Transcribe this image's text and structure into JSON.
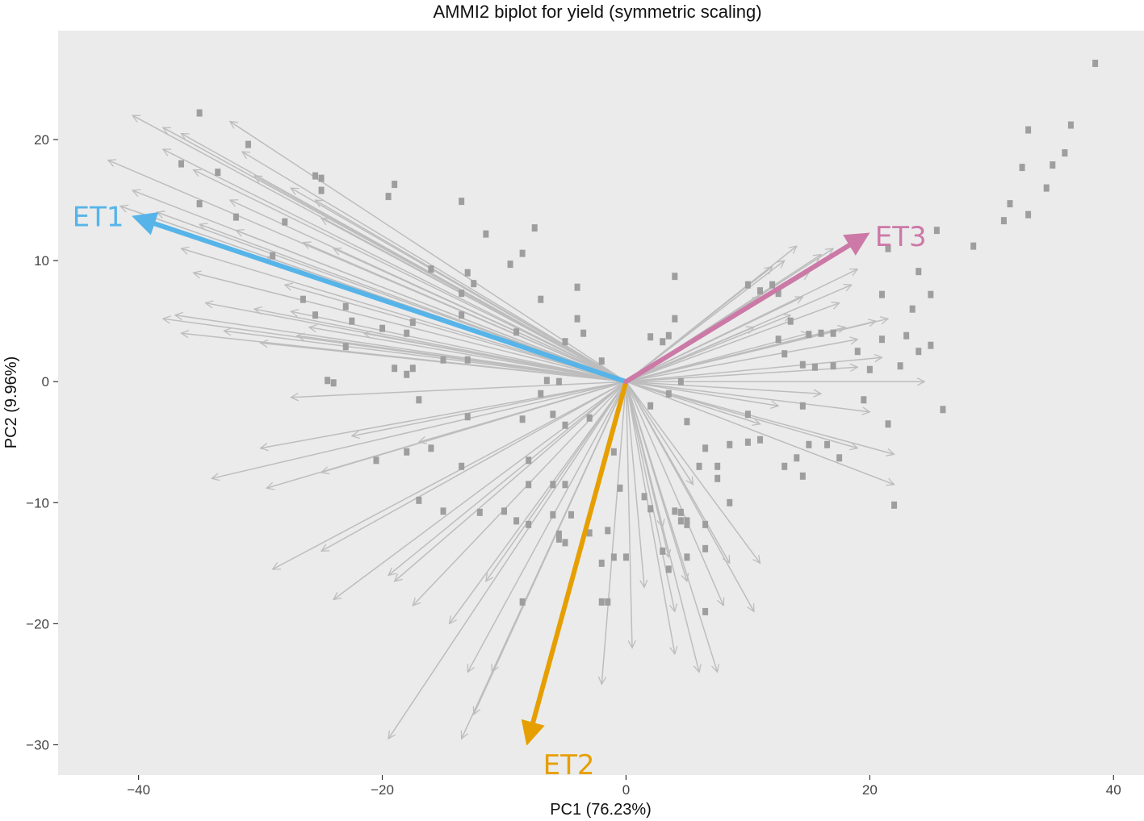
{
  "chart_data": {
    "type": "scatter",
    "title": "AMMI2 biplot for yield (symmetric scaling)",
    "xlabel": "PC1 (76.23%)",
    "ylabel": "PC2 (9.96%)",
    "xlim": [
      -46.6,
      42.5
    ],
    "ylim": [
      -32.5,
      29.0
    ],
    "x_ticks": [
      -40,
      -20,
      0,
      20,
      40
    ],
    "y_ticks": [
      20,
      10,
      0,
      -10,
      -20,
      -30
    ],
    "x_tick_labels": [
      "−40",
      "−20",
      "0",
      "20",
      "40"
    ],
    "y_tick_labels": [
      "20",
      "10",
      "0",
      "−10",
      "−20",
      "−30"
    ],
    "grid": false,
    "colors": {
      "panel_background": "#ebebeb",
      "genotype_vector": "#bdbdbd",
      "genotype_point": "#9e9e9e",
      "ET1": "#56b4e9",
      "ET2": "#e69f00",
      "ET3": "#cc79a7"
    },
    "environments": [
      {
        "label": "ET1",
        "x": -40.0,
        "y": 13.5
      },
      {
        "label": "ET2",
        "x": -8.0,
        "y": -29.5
      },
      {
        "label": "ET3",
        "x": 19.5,
        "y": 12.0
      }
    ],
    "genotype_vectors": [
      [
        -40.5,
        22.0
      ],
      [
        -38.0,
        21.0
      ],
      [
        -36.5,
        20.5
      ],
      [
        -32.5,
        21.5
      ],
      [
        -42.5,
        18.3
      ],
      [
        -38.0,
        19.2
      ],
      [
        -35.5,
        17.5
      ],
      [
        -31.5,
        19.0
      ],
      [
        -30.5,
        17.0
      ],
      [
        -40.5,
        15.8
      ],
      [
        -38.5,
        14.0
      ],
      [
        -35.0,
        13.0
      ],
      [
        -32.0,
        12.5
      ],
      [
        -41.5,
        14.5
      ],
      [
        -36.5,
        11.0
      ],
      [
        -29.5,
        10.3
      ],
      [
        -26.5,
        11.5
      ],
      [
        -24.0,
        11.0
      ],
      [
        -32.5,
        15.0
      ],
      [
        -27.5,
        16.0
      ],
      [
        -25.5,
        15.0
      ],
      [
        -25.0,
        13.5
      ],
      [
        -35.5,
        9.0
      ],
      [
        -28.0,
        8.0
      ],
      [
        -38.0,
        5.2
      ],
      [
        -34.5,
        6.5
      ],
      [
        -30.5,
        6.0
      ],
      [
        -27.5,
        5.8
      ],
      [
        -26.0,
        4.5
      ],
      [
        -37.0,
        5.5
      ],
      [
        -36.5,
        4.0
      ],
      [
        -33.0,
        4.2
      ],
      [
        -30.0,
        3.2
      ],
      [
        -27.0,
        3.8
      ],
      [
        -21.5,
        4.0
      ],
      [
        -27.5,
        -1.3
      ],
      [
        -22.5,
        -4.5
      ],
      [
        -30.0,
        -5.5
      ],
      [
        -34.0,
        -8.0
      ],
      [
        -29.5,
        -8.8
      ],
      [
        -25.0,
        -7.5
      ],
      [
        -17.0,
        -5.0
      ],
      [
        -29.0,
        -15.5
      ],
      [
        -25.0,
        -14.0
      ],
      [
        -24.0,
        -18.0
      ],
      [
        -19.5,
        -16.0
      ],
      [
        -17.5,
        -18.5
      ],
      [
        -14.5,
        -20.0
      ],
      [
        -19.0,
        -16.5
      ],
      [
        -11.5,
        -16.5
      ],
      [
        -13.0,
        -24.0
      ],
      [
        -12.5,
        -27.5
      ],
      [
        -19.5,
        -29.5
      ],
      [
        -13.5,
        -29.5
      ],
      [
        -11.0,
        -24.0
      ],
      [
        -2.0,
        -25.0
      ],
      [
        0.5,
        -22.0
      ],
      [
        1.5,
        -17.0
      ],
      [
        3.5,
        -14.5
      ],
      [
        4.0,
        -19.0
      ],
      [
        4.0,
        -22.5
      ],
      [
        6.0,
        -24.0
      ],
      [
        7.5,
        -24.0
      ],
      [
        8.0,
        -18.5
      ],
      [
        5.0,
        -16.5
      ],
      [
        8.5,
        -15.0
      ],
      [
        11.0,
        -15.0
      ],
      [
        10.5,
        -19.0
      ],
      [
        3.0,
        -12.0
      ],
      [
        5.5,
        -8.5
      ],
      [
        11.0,
        -3.5
      ],
      [
        19.0,
        -5.5
      ],
      [
        22.0,
        -8.5
      ],
      [
        22.0,
        -6.0
      ],
      [
        20.0,
        -2.5
      ],
      [
        12.5,
        -2.0
      ],
      [
        16.0,
        -1.0
      ],
      [
        24.5,
        0.0
      ],
      [
        19.0,
        1.2
      ],
      [
        21.0,
        2.0
      ],
      [
        19.0,
        3.5
      ],
      [
        20.5,
        5.0
      ],
      [
        21.5,
        5.2
      ],
      [
        18.0,
        4.5
      ],
      [
        15.0,
        4.0
      ],
      [
        17.5,
        6.5
      ],
      [
        18.5,
        8.0
      ],
      [
        19.0,
        9.3
      ],
      [
        15.0,
        9.0
      ],
      [
        16.0,
        10.5
      ],
      [
        17.0,
        11.0
      ],
      [
        14.0,
        11.2
      ],
      [
        13.0,
        10.0
      ],
      [
        12.0,
        9.5
      ],
      [
        14.5,
        7.0
      ],
      [
        11.0,
        7.0
      ],
      [
        13.5,
        5.5
      ],
      [
        10.5,
        4.5
      ]
    ],
    "genotype_points": [
      [
        -35.0,
        22.2
      ],
      [
        -31.0,
        19.6
      ],
      [
        -36.5,
        18.0
      ],
      [
        -33.5,
        17.3
      ],
      [
        -25.5,
        17.0
      ],
      [
        -25.0,
        16.8
      ],
      [
        -25.0,
        15.8
      ],
      [
        -19.0,
        16.3
      ],
      [
        -19.5,
        15.3
      ],
      [
        -13.5,
        14.9
      ],
      [
        -35.0,
        14.7
      ],
      [
        -32.0,
        13.6
      ],
      [
        -28.0,
        13.2
      ],
      [
        -11.5,
        12.2
      ],
      [
        -7.5,
        12.7
      ],
      [
        -8.5,
        10.6
      ],
      [
        -9.5,
        9.7
      ],
      [
        -16.0,
        9.3
      ],
      [
        -13.0,
        9.0
      ],
      [
        -12.5,
        8.1
      ],
      [
        -29.0,
        10.4
      ],
      [
        -4.0,
        7.8
      ],
      [
        -13.5,
        7.3
      ],
      [
        -26.5,
        6.8
      ],
      [
        -23.0,
        6.2
      ],
      [
        -7.0,
        6.8
      ],
      [
        -25.5,
        5.5
      ],
      [
        -22.5,
        5.0
      ],
      [
        -13.5,
        5.5
      ],
      [
        -4.0,
        5.2
      ],
      [
        -17.5,
        4.9
      ],
      [
        -20.0,
        4.4
      ],
      [
        -18.0,
        4.0
      ],
      [
        -9.0,
        4.1
      ],
      [
        -3.5,
        4.0
      ],
      [
        -5.0,
        3.3
      ],
      [
        -23.0,
        2.9
      ],
      [
        -15.0,
        1.8
      ],
      [
        -13.0,
        1.8
      ],
      [
        -2.0,
        1.7
      ],
      [
        -19.0,
        1.1
      ],
      [
        -17.5,
        1.1
      ],
      [
        -18.0,
        0.6
      ],
      [
        -24.5,
        0.1
      ],
      [
        -24.0,
        -0.1
      ],
      [
        -6.5,
        0.1
      ],
      [
        -5.5,
        0.0
      ],
      [
        -7.0,
        -1.0
      ],
      [
        -17.0,
        -1.5
      ],
      [
        -6.0,
        -2.7
      ],
      [
        -13.0,
        -2.9
      ],
      [
        -8.5,
        -3.1
      ],
      [
        -5.0,
        -3.6
      ],
      [
        -3.0,
        -3.0
      ],
      [
        -16.0,
        -5.5
      ],
      [
        -20.5,
        -6.5
      ],
      [
        -18.0,
        -5.8
      ],
      [
        -8.0,
        -6.5
      ],
      [
        -13.5,
        -7.0
      ],
      [
        -1.0,
        -5.8
      ],
      [
        -8.0,
        -8.5
      ],
      [
        -6.0,
        -8.5
      ],
      [
        -5.0,
        -8.5
      ],
      [
        -0.5,
        -8.8
      ],
      [
        -17.0,
        -9.8
      ],
      [
        -15.0,
        -10.7
      ],
      [
        -12.0,
        -10.8
      ],
      [
        -10.0,
        -10.7
      ],
      [
        -6.0,
        -11.0
      ],
      [
        -4.5,
        -11.0
      ],
      [
        -9.0,
        -11.5
      ],
      [
        -8.0,
        -11.8
      ],
      [
        -5.5,
        -12.6
      ],
      [
        -5.5,
        -13.0
      ],
      [
        -5.0,
        -13.3
      ],
      [
        -3.0,
        -12.5
      ],
      [
        -1.5,
        -12.3
      ],
      [
        -1.0,
        -14.5
      ],
      [
        0.0,
        -14.5
      ],
      [
        -8.5,
        -18.2
      ],
      [
        -2.0,
        -18.2
      ],
      [
        -1.5,
        -18.2
      ],
      [
        -2.0,
        -15.0
      ],
      [
        1.5,
        -9.5
      ],
      [
        2.0,
        -10.5
      ],
      [
        4.0,
        -10.7
      ],
      [
        4.5,
        -10.8
      ],
      [
        4.5,
        -11.5
      ],
      [
        5.0,
        -11.5
      ],
      [
        5.0,
        -11.8
      ],
      [
        6.5,
        -11.8
      ],
      [
        5.0,
        -14.5
      ],
      [
        3.0,
        -14.0
      ],
      [
        3.5,
        -15.5
      ],
      [
        6.5,
        -13.8
      ],
      [
        6.5,
        -19.0
      ],
      [
        8.5,
        -10.0
      ],
      [
        7.5,
        -8.0
      ],
      [
        6.0,
        -7.0
      ],
      [
        7.5,
        -7.0
      ],
      [
        6.5,
        -5.5
      ],
      [
        8.5,
        -5.2
      ],
      [
        10.0,
        -5.0
      ],
      [
        11.0,
        -4.8
      ],
      [
        5.0,
        -3.3
      ],
      [
        3.5,
        -1.0
      ],
      [
        2.0,
        -2.0
      ],
      [
        4.5,
        0.0
      ],
      [
        10.0,
        -2.7
      ],
      [
        13.0,
        -7.0
      ],
      [
        14.5,
        -7.8
      ],
      [
        14.0,
        -6.3
      ],
      [
        15.0,
        -5.2
      ],
      [
        14.5,
        -2.0
      ],
      [
        16.5,
        -5.2
      ],
      [
        17.5,
        -6.3
      ],
      [
        19.5,
        -1.5
      ],
      [
        21.5,
        -3.5
      ],
      [
        22.0,
        -10.2
      ],
      [
        26.0,
        -2.3
      ],
      [
        14.5,
        1.4
      ],
      [
        15.5,
        1.2
      ],
      [
        17.0,
        1.3
      ],
      [
        19.0,
        2.5
      ],
      [
        20.0,
        1.0
      ],
      [
        22.5,
        1.3
      ],
      [
        13.0,
        2.3
      ],
      [
        15.0,
        3.9
      ],
      [
        16.0,
        4.0
      ],
      [
        17.0,
        4.0
      ],
      [
        21.0,
        3.5
      ],
      [
        24.0,
        2.5
      ],
      [
        25.0,
        3.0
      ],
      [
        23.0,
        3.8
      ],
      [
        21.0,
        7.2
      ],
      [
        23.5,
        6.0
      ],
      [
        25.0,
        7.2
      ],
      [
        24.0,
        9.1
      ],
      [
        21.5,
        11.0
      ],
      [
        25.5,
        12.5
      ],
      [
        28.5,
        11.2
      ],
      [
        31.0,
        13.3
      ],
      [
        31.5,
        14.7
      ],
      [
        33.0,
        13.8
      ],
      [
        34.5,
        16.0
      ],
      [
        32.5,
        17.7
      ],
      [
        35.0,
        17.9
      ],
      [
        36.0,
        18.9
      ],
      [
        36.5,
        21.2
      ],
      [
        33.0,
        20.8
      ],
      [
        38.5,
        26.3
      ],
      [
        4.0,
        5.2
      ],
      [
        2.0,
        3.7
      ],
      [
        3.0,
        3.3
      ],
      [
        3.5,
        3.8
      ],
      [
        4.0,
        8.7
      ],
      [
        12.5,
        7.3
      ],
      [
        11.0,
        7.5
      ],
      [
        10.0,
        8.0
      ],
      [
        12.0,
        8.0
      ],
      [
        13.5,
        5.0
      ],
      [
        12.5,
        3.5
      ]
    ]
  }
}
